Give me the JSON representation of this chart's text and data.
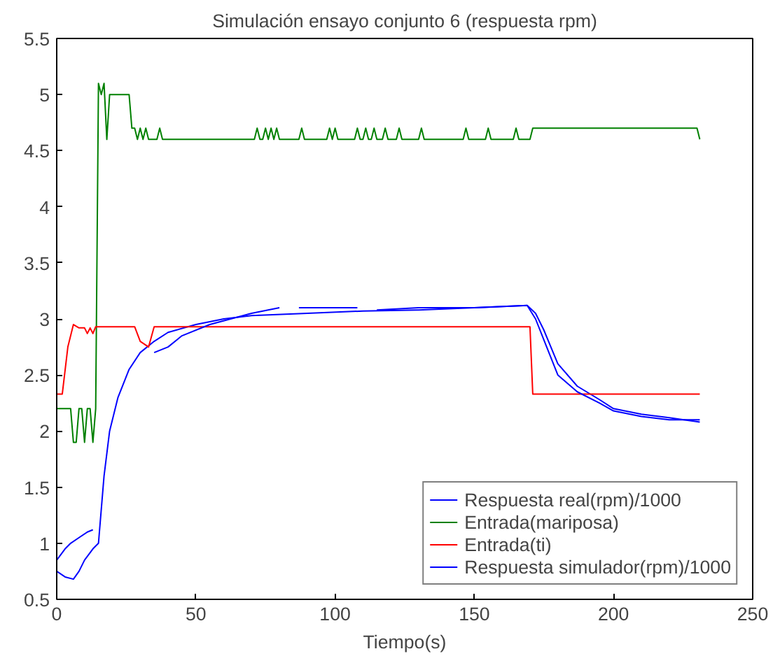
{
  "chart_data": {
    "type": "line",
    "title": "Simulación ensayo conjunto 6 (respuesta rpm)",
    "xlabel": "Tiempo(s)",
    "xlim": [
      0,
      250
    ],
    "xticks": [
      0,
      50,
      100,
      150,
      200,
      250
    ],
    "ylim": [
      0.5,
      5.5
    ],
    "yticks": [
      0.5,
      1,
      1.5,
      2,
      2.5,
      3,
      3.5,
      4,
      4.5,
      5,
      5.5
    ],
    "grid": false,
    "legend": "bottom right",
    "line_style": "solid",
    "marker": "none",
    "series": [
      {
        "name": "Respuesta real(rpm)/1000",
        "color": "#0000ff",
        "x": [
          0,
          3,
          6,
          8,
          10,
          13,
          15,
          17,
          19,
          22,
          26,
          30,
          35,
          40,
          50,
          60,
          70,
          90,
          110,
          130,
          150,
          169,
          172,
          175,
          180,
          187,
          195,
          200,
          210,
          220,
          231
        ],
        "values": [
          0.75,
          0.7,
          0.68,
          0.75,
          0.85,
          0.95,
          1.0,
          1.6,
          2.0,
          2.3,
          2.55,
          2.7,
          2.8,
          2.88,
          2.95,
          3.0,
          3.03,
          3.05,
          3.07,
          3.08,
          3.1,
          3.12,
          3.05,
          2.9,
          2.6,
          2.4,
          2.28,
          2.2,
          2.15,
          2.12,
          2.08
        ]
      },
      {
        "name": "Entrada(mariposa)",
        "color": "#008000",
        "x": [
          0,
          5,
          6,
          7,
          8,
          9,
          10,
          11,
          12,
          13,
          14,
          15,
          16,
          17,
          18,
          19,
          26,
          27,
          28,
          29,
          30,
          31,
          32,
          33,
          34,
          36,
          37,
          38,
          71,
          72,
          73,
          74,
          75,
          76,
          77,
          78,
          79,
          80,
          87,
          88,
          89,
          97,
          98,
          99,
          100,
          101,
          107,
          108,
          109,
          110,
          111,
          112,
          113,
          114,
          115,
          117,
          118,
          119,
          122,
          123,
          124,
          130,
          131,
          132,
          146,
          147,
          148,
          154,
          155,
          156,
          164,
          165,
          166,
          170,
          171,
          230,
          231
        ],
        "values": [
          2.2,
          2.2,
          1.9,
          1.9,
          2.2,
          2.2,
          1.9,
          2.2,
          2.2,
          1.9,
          2.2,
          5.1,
          5.0,
          5.1,
          4.6,
          5.0,
          5.0,
          4.7,
          4.7,
          4.6,
          4.7,
          4.6,
          4.7,
          4.6,
          4.6,
          4.6,
          4.7,
          4.6,
          4.6,
          4.7,
          4.6,
          4.6,
          4.7,
          4.6,
          4.7,
          4.6,
          4.7,
          4.6,
          4.6,
          4.7,
          4.6,
          4.6,
          4.7,
          4.6,
          4.7,
          4.6,
          4.6,
          4.7,
          4.6,
          4.6,
          4.7,
          4.6,
          4.6,
          4.7,
          4.6,
          4.6,
          4.7,
          4.6,
          4.6,
          4.7,
          4.6,
          4.6,
          4.7,
          4.6,
          4.6,
          4.7,
          4.6,
          4.6,
          4.7,
          4.6,
          4.6,
          4.7,
          4.6,
          4.6,
          4.7,
          4.7,
          4.6
        ]
      },
      {
        "name": "Entrada(ti)",
        "color": "#ff0000",
        "x": [
          0,
          2,
          4,
          6,
          8,
          10,
          11,
          12,
          13,
          14,
          28,
          30,
          33,
          35,
          170,
          171,
          231
        ],
        "values": [
          2.33,
          2.33,
          2.75,
          2.95,
          2.92,
          2.92,
          2.87,
          2.92,
          2.87,
          2.93,
          2.93,
          2.8,
          2.75,
          2.93,
          2.93,
          2.33,
          2.33
        ]
      },
      {
        "name": "Respuesta simulador(rpm)/1000",
        "color": "#0000ff",
        "x": [
          0,
          3,
          5,
          8,
          11,
          13,
          14,
          35,
          40,
          45,
          55,
          70,
          80,
          81,
          87,
          100,
          108,
          109,
          115,
          130,
          150,
          169,
          172,
          176,
          180,
          187,
          195,
          200,
          210,
          220,
          231
        ],
        "values": [
          0.85,
          0.95,
          1.0,
          1.05,
          1.1,
          1.12,
          null,
          2.7,
          2.75,
          2.85,
          2.95,
          3.05,
          3.1,
          null,
          3.1,
          3.1,
          3.1,
          null,
          3.08,
          3.1,
          3.1,
          3.12,
          3.0,
          2.75,
          2.5,
          2.35,
          2.25,
          2.18,
          2.13,
          2.1,
          2.1
        ]
      }
    ]
  }
}
